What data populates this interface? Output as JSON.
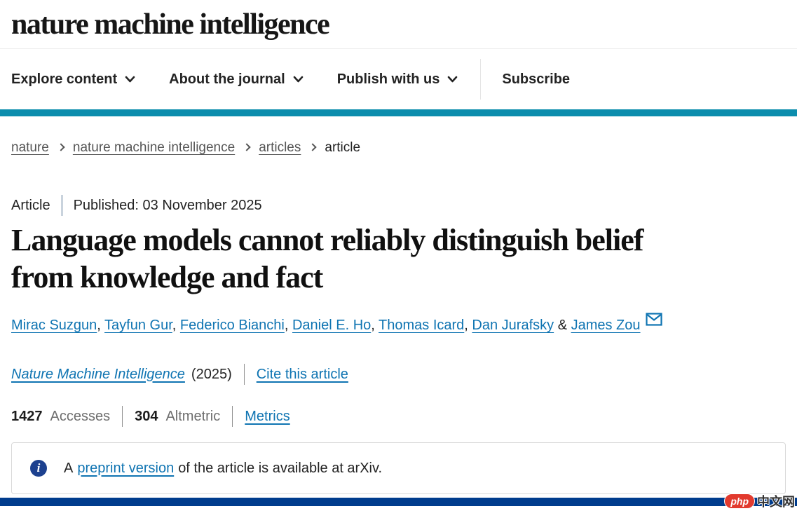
{
  "colors": {
    "teal_bar": "#0c8dad",
    "bottom_bar": "#003c8d",
    "link_blue": "#0f74b2",
    "info_icon": "#1d418f"
  },
  "header": {
    "logo": "nature machine intelligence"
  },
  "nav": {
    "items": [
      {
        "label": "Explore content"
      },
      {
        "label": "About the journal"
      },
      {
        "label": "Publish with us"
      }
    ],
    "subscribe_label": "Subscribe"
  },
  "breadcrumb": {
    "links": [
      "nature",
      "nature machine intelligence",
      "articles"
    ],
    "current": "article"
  },
  "article": {
    "type_label": "Article",
    "published": "Published: 03 November 2025",
    "title_lines": [
      "Language models cannot reliably distinguish belief",
      "from knowledge and fact"
    ],
    "authors": [
      "Mirac Suzgun",
      "Tayfun Gur",
      "Federico Bianchi",
      "Daniel E. Ho",
      "Thomas Icard",
      "Dan Jurafsky",
      "James Zou"
    ],
    "authors_separator": ", ",
    "authors_final_separator": " & ",
    "journal_name": "Nature Machine Intelligence",
    "year_text": "(2025)",
    "cite_label": "Cite this article",
    "metrics": {
      "accesses_count": "1427",
      "accesses_label": "Accesses",
      "altmetric_count": "304",
      "altmetric_label": "Altmetric",
      "metrics_label": "Metrics"
    },
    "notice": {
      "icon_glyph": "i",
      "prefix": "A",
      "link_text": "preprint version",
      "suffix": "of the article is available at arXiv."
    }
  },
  "watermark": {
    "badge_text": "php",
    "site_text": "中文网"
  }
}
